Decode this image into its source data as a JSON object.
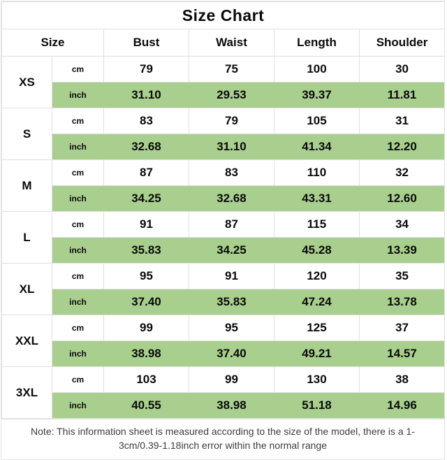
{
  "chart_data": {
    "type": "table",
    "title": "Size Chart",
    "columns": [
      "Size",
      "Bust",
      "Waist",
      "Length",
      "Shoulder"
    ],
    "unit_row_labels": [
      "cm",
      "inch"
    ],
    "rows": [
      {
        "size": "XS",
        "cm": {
          "bust": "79",
          "waist": "75",
          "length": "100",
          "shoulder": "30"
        },
        "inch": {
          "bust": "31.10",
          "waist": "29.53",
          "length": "39.37",
          "shoulder": "11.81"
        }
      },
      {
        "size": "S",
        "cm": {
          "bust": "83",
          "waist": "79",
          "length": "105",
          "shoulder": "31"
        },
        "inch": {
          "bust": "32.68",
          "waist": "31.10",
          "length": "41.34",
          "shoulder": "12.20"
        }
      },
      {
        "size": "M",
        "cm": {
          "bust": "87",
          "waist": "83",
          "length": "110",
          "shoulder": "32"
        },
        "inch": {
          "bust": "34.25",
          "waist": "32.68",
          "length": "43.31",
          "shoulder": "12.60"
        }
      },
      {
        "size": "L",
        "cm": {
          "bust": "91",
          "waist": "87",
          "length": "115",
          "shoulder": "34"
        },
        "inch": {
          "bust": "35.83",
          "waist": "34.25",
          "length": "45.28",
          "shoulder": "13.39"
        }
      },
      {
        "size": "XL",
        "cm": {
          "bust": "95",
          "waist": "91",
          "length": "120",
          "shoulder": "35"
        },
        "inch": {
          "bust": "37.40",
          "waist": "35.83",
          "length": "47.24",
          "shoulder": "13.78"
        }
      },
      {
        "size": "XXL",
        "cm": {
          "bust": "99",
          "waist": "95",
          "length": "125",
          "shoulder": "37"
        },
        "inch": {
          "bust": "38.98",
          "waist": "37.40",
          "length": "49.21",
          "shoulder": "14.57"
        }
      },
      {
        "size": "3XL",
        "cm": {
          "bust": "103",
          "waist": "99",
          "length": "130",
          "shoulder": "38"
        },
        "inch": {
          "bust": "40.55",
          "waist": "38.98",
          "length": "51.18",
          "shoulder": "14.96"
        }
      }
    ],
    "note": "Note: This information sheet is measured according to the size of the model, there is a 1-3cm/0.39-1.18inch error within the normal range"
  },
  "units": {
    "cm": "cm",
    "inch": "inch"
  },
  "colors": {
    "highlight_green": "#a9cf8e",
    "grid_border": "#e0e0e0",
    "table_text": "#0a0a0a",
    "note_text": "#3d3d3d"
  }
}
